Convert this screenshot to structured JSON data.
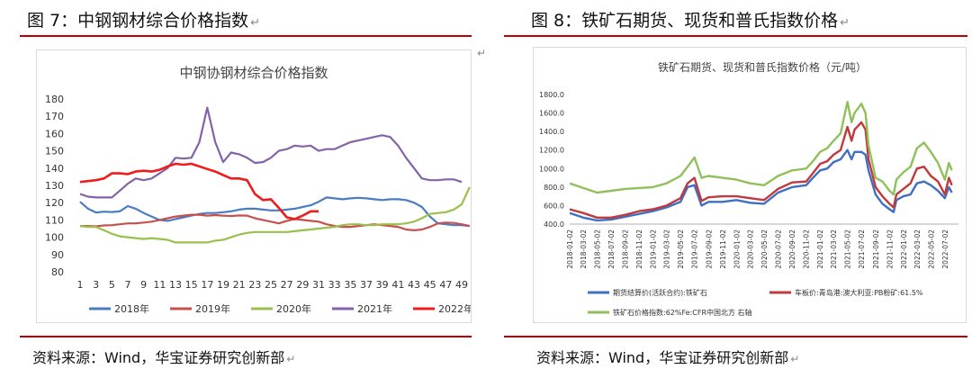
{
  "left_panel": {
    "title": "图 7：中钢钢材综合价格指数",
    "source": "资料来源：Wind，华宝证券研究创新部"
  },
  "right_panel": {
    "title": "图 8：铁矿石期货、现货和普氏指数价格",
    "source": "资料来源：Wind，华宝证券研究创新部"
  },
  "colors": {
    "rule": "#c00000",
    "s2018": "#4a7cc4",
    "s2019": "#c8504c",
    "s2020": "#98c04c",
    "s2021": "#8462aa",
    "s2022": "#ee1c1c",
    "fut": "#3f6fc4",
    "spot": "#c0393b",
    "platts": "#8fc05a"
  },
  "chart_data": [
    {
      "type": "line",
      "title": "中钢协钢材综合价格指数",
      "xlabel": "",
      "ylabel": "",
      "xlim": [
        1,
        49
      ],
      "ylim": [
        80,
        180
      ],
      "x_ticks": [
        1,
        3,
        5,
        7,
        9,
        11,
        13,
        15,
        17,
        19,
        21,
        23,
        25,
        27,
        29,
        31,
        33,
        35,
        37,
        39,
        41,
        43,
        45,
        47,
        49
      ],
      "y_ticks": [
        80,
        90,
        100,
        110,
        120,
        130,
        140,
        150,
        160,
        170,
        180
      ],
      "grid": false,
      "legend": "bottom",
      "series": [
        {
          "name": "2018年",
          "color_key": "s2018",
          "x": [
            1,
            2,
            3,
            4,
            5,
            6,
            7,
            8,
            9,
            10,
            11,
            12,
            13,
            14,
            15,
            16,
            17,
            18,
            19,
            20,
            21,
            22,
            23,
            24,
            25,
            26,
            27,
            28,
            29,
            30,
            31,
            32,
            33,
            34,
            35,
            36,
            37,
            38,
            39,
            40,
            41,
            42,
            43,
            44,
            45,
            46,
            47,
            48,
            49,
            50
          ],
          "y": [
            120.5,
            116.5,
            114.3,
            114.8,
            114.6,
            115,
            118,
            116.5,
            114,
            112,
            110,
            109.5,
            110.5,
            111.5,
            112.5,
            113.5,
            114,
            114,
            114.5,
            115,
            116,
            116.5,
            116.5,
            116,
            115.5,
            115.5,
            116,
            116.5,
            117.5,
            118.5,
            120.5,
            123,
            122.5,
            122,
            122.5,
            122.8,
            122.5,
            122,
            121.5,
            122,
            122,
            121.5,
            120,
            117.5,
            112,
            108,
            107.5,
            107,
            107,
            106.5
          ]
        },
        {
          "name": "2019年",
          "color_key": "s2019",
          "x": [
            1,
            2,
            3,
            4,
            5,
            6,
            7,
            8,
            9,
            10,
            11,
            12,
            13,
            14,
            15,
            16,
            17,
            18,
            19,
            20,
            21,
            22,
            23,
            24,
            25,
            26,
            27,
            28,
            29,
            30,
            31,
            32,
            33,
            34,
            35,
            36,
            37,
            38,
            39,
            40,
            41,
            42,
            43,
            44,
            45,
            46,
            47,
            48,
            49,
            50
          ],
          "y": [
            106.5,
            106.5,
            106.3,
            106.8,
            107,
            107.5,
            108,
            108,
            108.5,
            109,
            110,
            111,
            112,
            112.5,
            113,
            113,
            112.5,
            112.8,
            112.5,
            112.3,
            112.6,
            112.5,
            111,
            110,
            109,
            108,
            109.5,
            110.5,
            110,
            109.5,
            109,
            107.5,
            106.5,
            106,
            106,
            106.5,
            107,
            107.5,
            107,
            106.5,
            106,
            104.5,
            104,
            104.5,
            106,
            108,
            108.5,
            108.3,
            107.5,
            106.5
          ]
        },
        {
          "name": "2020年",
          "color_key": "s2020",
          "x": [
            1,
            2,
            3,
            4,
            5,
            6,
            7,
            8,
            9,
            10,
            11,
            12,
            13,
            14,
            15,
            16,
            17,
            18,
            19,
            20,
            21,
            22,
            23,
            24,
            25,
            26,
            27,
            28,
            29,
            30,
            31,
            32,
            33,
            34,
            35,
            36,
            37,
            38,
            39,
            40,
            41,
            42,
            43,
            44,
            45,
            46,
            47,
            48,
            49,
            50
          ],
          "y": [
            106.5,
            106,
            106,
            104,
            102,
            100.5,
            100,
            99.5,
            99,
            99.5,
            99,
            98.5,
            97,
            97,
            97,
            97,
            97,
            98,
            98.5,
            100,
            101.5,
            102.5,
            103,
            103,
            103,
            103,
            103,
            103.5,
            104,
            104.5,
            105,
            105.5,
            106,
            107,
            107.5,
            107.5,
            107,
            107,
            107.5,
            107.5,
            107.5,
            108,
            109,
            111,
            113.5,
            114,
            114.5,
            116,
            119,
            129
          ]
        },
        {
          "name": "2021年",
          "color_key": "s2021",
          "x": [
            1,
            2,
            3,
            4,
            5,
            6,
            7,
            8,
            9,
            10,
            11,
            12,
            13,
            14,
            15,
            16,
            17,
            18,
            19,
            20,
            21,
            22,
            23,
            24,
            25,
            26,
            27,
            28,
            29,
            30,
            31,
            32,
            33,
            34,
            35,
            36,
            37,
            38,
            39,
            40,
            41,
            42,
            43,
            44,
            45,
            46,
            47,
            48,
            49
          ],
          "y": [
            125,
            123.5,
            123,
            123,
            123,
            127,
            131,
            134,
            133,
            134,
            137,
            140,
            146,
            145.5,
            146,
            155,
            175,
            155,
            143.5,
            149,
            148,
            146,
            143,
            143.5,
            146,
            150,
            151,
            153,
            152.5,
            153,
            150,
            151,
            151,
            153,
            155,
            156,
            157,
            158,
            159,
            158,
            153,
            146,
            140,
            134,
            133,
            133,
            133.5,
            133.5,
            132
          ]
        },
        {
          "name": "2022年",
          "color_key": "s2022",
          "x": [
            1,
            2,
            3,
            4,
            5,
            6,
            7,
            8,
            9,
            10,
            11,
            12,
            13,
            14,
            15,
            16,
            17,
            18,
            19,
            20,
            21,
            22,
            23,
            24,
            25,
            26,
            27,
            28,
            29,
            30,
            31
          ],
          "y": [
            132,
            132.5,
            133,
            134,
            137,
            137,
            136.5,
            138,
            138.5,
            138,
            139,
            141,
            142.5,
            142,
            142.5,
            141,
            139.5,
            138,
            136,
            134,
            134,
            133,
            125,
            121.5,
            122,
            117,
            111.5,
            110.5,
            112.5,
            115,
            115
          ]
        }
      ]
    },
    {
      "type": "line",
      "title": "铁矿石期货、现货和普氏指数价格（元/吨）",
      "xlabel": "",
      "ylabel": "",
      "ylim": [
        400,
        1800
      ],
      "y_ticks": [
        "400.0",
        "600.0",
        "800.0",
        "1000.0",
        "1200.0",
        "1400.0",
        "1600.0",
        "1800.0"
      ],
      "x_ticks": [
        "2018-01-02",
        "2018-03-02",
        "2018-05-02",
        "2018-07-02",
        "2018-09-02",
        "2018-11-02",
        "2019-01-02",
        "2019-03-02",
        "2019-05-02",
        "2019-07-02",
        "2019-09-02",
        "2019-11-02",
        "2020-01-02",
        "2020-03-02",
        "2020-05-02",
        "2020-07-02",
        "2020-09-02",
        "2020-11-02",
        "2021-01-02",
        "2021-03-02",
        "2021-05-02",
        "2021-07-02",
        "2021-09-02",
        "2021-11-02",
        "2022-01-02",
        "2022-03-02",
        "2022-05-02",
        "2022-07-02"
      ],
      "grid": false,
      "legend": "bottom",
      "x_dates": [
        "2018-01-02",
        "2018-03-02",
        "2018-05-02",
        "2018-07-02",
        "2018-09-02",
        "2018-11-02",
        "2019-01-02",
        "2019-03-02",
        "2019-05-02",
        "2019-06-02",
        "2019-07-02",
        "2019-08-02",
        "2019-09-02",
        "2019-11-02",
        "2020-01-02",
        "2020-03-02",
        "2020-05-02",
        "2020-07-02",
        "2020-09-02",
        "2020-11-02",
        "2020-12-02",
        "2021-01-02",
        "2021-02-02",
        "2021-03-02",
        "2021-04-02",
        "2021-05-02",
        "2021-05-20",
        "2021-06-02",
        "2021-07-02",
        "2021-07-20",
        "2021-08-02",
        "2021-09-02",
        "2021-10-02",
        "2021-11-02",
        "2021-11-20",
        "2021-12-02",
        "2022-01-02",
        "2022-02-02",
        "2022-03-02",
        "2022-04-02",
        "2022-05-02",
        "2022-06-02",
        "2022-07-02",
        "2022-07-20",
        "2022-08-02"
      ],
      "series": [
        {
          "name": "期货结算价(活跃合约):铁矿石",
          "color_key": "fut",
          "y": [
            520,
            470,
            440,
            450,
            480,
            510,
            540,
            580,
            640,
            800,
            820,
            600,
            640,
            640,
            660,
            630,
            620,
            740,
            800,
            820,
            900,
            980,
            1000,
            1070,
            1100,
            1200,
            1100,
            1180,
            1180,
            1150,
            980,
            720,
            620,
            560,
            530,
            660,
            700,
            720,
            840,
            860,
            820,
            760,
            680,
            800,
            740
          ]
        },
        {
          "name": "车板价:青岛港:澳大利亚:PB粉矿:61.5%",
          "color_key": "spot",
          "y": [
            560,
            520,
            470,
            470,
            500,
            540,
            560,
            600,
            680,
            840,
            900,
            650,
            690,
            700,
            700,
            680,
            660,
            780,
            850,
            860,
            950,
            1050,
            1080,
            1150,
            1200,
            1450,
            1300,
            1420,
            1500,
            1420,
            1100,
            800,
            700,
            620,
            580,
            720,
            780,
            840,
            1000,
            1020,
            920,
            860,
            720,
            900,
            820
          ]
        },
        {
          "name": "铁矿石价格指数:62%Fe:CFR中国北方 右轴",
          "color_key": "platts",
          "y": [
            840,
            790,
            740,
            760,
            780,
            790,
            800,
            840,
            920,
            1020,
            1120,
            900,
            920,
            900,
            880,
            840,
            820,
            920,
            980,
            1000,
            1080,
            1180,
            1220,
            1300,
            1380,
            1720,
            1500,
            1600,
            1700,
            1600,
            1250,
            900,
            860,
            760,
            720,
            880,
            960,
            1020,
            1220,
            1280,
            1180,
            1060,
            880,
            1060,
            980
          ]
        }
      ]
    }
  ]
}
